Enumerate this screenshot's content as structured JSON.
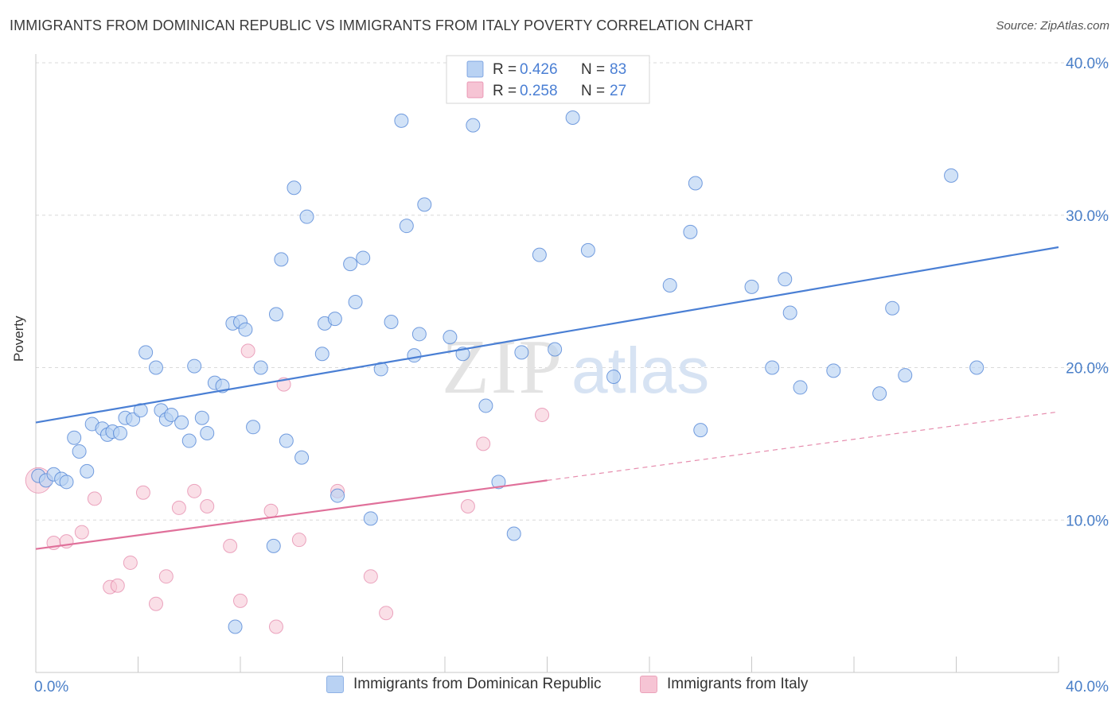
{
  "header": {
    "title": "IMMIGRANTS FROM DOMINICAN REPUBLIC VS IMMIGRANTS FROM ITALY POVERTY CORRELATION CHART",
    "source": "Source: ZipAtlas.com"
  },
  "watermark": {
    "zip": "ZIP",
    "atlas": "atlas"
  },
  "colors": {
    "blue": "#4a7fd4",
    "blue_fill": "#b9d2f3",
    "pink": "#e0709a",
    "pink_fill": "#f6c4d4",
    "grid": "#d9d9d9",
    "tick_label": "#4a7fc8"
  },
  "legend_top": [
    {
      "r_label": "R = ",
      "r_value": "0.426",
      "n_label": "N = ",
      "n_value": "83",
      "color": "#4a7fd4"
    },
    {
      "r_label": "R = ",
      "r_value": "0.258",
      "n_label": "N = ",
      "n_value": "27",
      "color": "#e0709a"
    }
  ],
  "chart_data": {
    "type": "scatter",
    "title": "IMMIGRANTS FROM DOMINICAN REPUBLIC VS IMMIGRANTS FROM ITALY POVERTY CORRELATION CHART",
    "xlabel": "",
    "ylabel": "Poverty",
    "xlim": [
      0,
      40
    ],
    "ylim": [
      0,
      40
    ],
    "x_tick_labels": [
      "0.0%",
      "40.0%"
    ],
    "y_ticks": [
      10,
      20,
      30,
      40
    ],
    "y_tick_labels": [
      "10.0%",
      "20.0%",
      "30.0%",
      "40.0%"
    ],
    "grid": true,
    "legend": "top-center",
    "series": [
      {
        "name": "Immigrants from Dominican Republic",
        "r": 0.426,
        "n": 83,
        "trend": {
          "x0": 0,
          "y0": 16.4,
          "x1": 40,
          "y1": 27.9
        },
        "points": [
          [
            0.1,
            12.9
          ],
          [
            0.4,
            12.6
          ],
          [
            0.7,
            13.0
          ],
          [
            1.0,
            12.7
          ],
          [
            1.2,
            12.5
          ],
          [
            1.5,
            15.4
          ],
          [
            1.7,
            14.5
          ],
          [
            2.0,
            13.2
          ],
          [
            2.2,
            16.3
          ],
          [
            2.6,
            16.0
          ],
          [
            2.8,
            15.6
          ],
          [
            3.0,
            15.8
          ],
          [
            3.3,
            15.7
          ],
          [
            3.5,
            16.7
          ],
          [
            3.8,
            16.6
          ],
          [
            4.1,
            17.2
          ],
          [
            4.3,
            21.0
          ],
          [
            4.7,
            20.0
          ],
          [
            4.9,
            17.2
          ],
          [
            5.1,
            16.6
          ],
          [
            5.3,
            16.9
          ],
          [
            5.7,
            16.4
          ],
          [
            6.0,
            15.2
          ],
          [
            6.2,
            20.1
          ],
          [
            6.5,
            16.7
          ],
          [
            6.7,
            15.7
          ],
          [
            7.0,
            19.0
          ],
          [
            7.3,
            18.8
          ],
          [
            7.7,
            22.9
          ],
          [
            8.0,
            23.0
          ],
          [
            8.2,
            22.5
          ],
          [
            8.5,
            16.1
          ],
          [
            8.8,
            20.0
          ],
          [
            9.3,
            8.3
          ],
          [
            9.4,
            23.5
          ],
          [
            9.6,
            27.1
          ],
          [
            9.8,
            15.2
          ],
          [
            10.1,
            31.8
          ],
          [
            10.4,
            14.1
          ],
          [
            10.6,
            29.9
          ],
          [
            11.2,
            20.9
          ],
          [
            11.3,
            22.9
          ],
          [
            11.7,
            23.2
          ],
          [
            11.8,
            11.6
          ],
          [
            12.3,
            26.8
          ],
          [
            12.5,
            24.3
          ],
          [
            12.8,
            27.2
          ],
          [
            13.1,
            10.1
          ],
          [
            13.5,
            19.9
          ],
          [
            13.9,
            23.0
          ],
          [
            14.3,
            36.2
          ],
          [
            14.5,
            29.3
          ],
          [
            14.8,
            20.8
          ],
          [
            15.0,
            22.2
          ],
          [
            15.2,
            30.7
          ],
          [
            16.2,
            22.0
          ],
          [
            16.7,
            20.9
          ],
          [
            17.1,
            35.9
          ],
          [
            17.6,
            17.5
          ],
          [
            18.1,
            12.5
          ],
          [
            18.7,
            9.1
          ],
          [
            19.0,
            21.0
          ],
          [
            19.7,
            27.4
          ],
          [
            20.3,
            21.2
          ],
          [
            21.0,
            36.4
          ],
          [
            21.6,
            27.7
          ],
          [
            22.6,
            19.4
          ],
          [
            24.8,
            25.4
          ],
          [
            25.6,
            28.9
          ],
          [
            25.8,
            32.1
          ],
          [
            26.0,
            15.9
          ],
          [
            28.0,
            25.3
          ],
          [
            28.8,
            20.0
          ],
          [
            29.3,
            25.8
          ],
          [
            29.5,
            23.6
          ],
          [
            29.9,
            18.7
          ],
          [
            31.2,
            19.8
          ],
          [
            33.0,
            18.3
          ],
          [
            33.5,
            23.9
          ],
          [
            34.0,
            19.5
          ],
          [
            35.8,
            32.6
          ],
          [
            36.8,
            20.0
          ],
          [
            7.8,
            3.0
          ]
        ]
      },
      {
        "name": "Immigrants from Italy",
        "r": 0.258,
        "n": 27,
        "trend": {
          "x0": 0,
          "y0": 8.1,
          "x1": 20,
          "y1": 12.6,
          "dash_to_x": 40,
          "dash_to_y": 17.1
        },
        "points": [
          [
            0.1,
            12.6
          ],
          [
            0.7,
            8.5
          ],
          [
            1.2,
            8.6
          ],
          [
            1.8,
            9.2
          ],
          [
            2.3,
            11.4
          ],
          [
            2.9,
            5.6
          ],
          [
            3.2,
            5.7
          ],
          [
            3.7,
            7.2
          ],
          [
            4.2,
            11.8
          ],
          [
            4.7,
            4.5
          ],
          [
            5.1,
            6.3
          ],
          [
            5.6,
            10.8
          ],
          [
            6.2,
            11.9
          ],
          [
            6.7,
            10.9
          ],
          [
            7.6,
            8.3
          ],
          [
            8.0,
            4.7
          ],
          [
            8.3,
            21.1
          ],
          [
            9.2,
            10.6
          ],
          [
            9.4,
            3.0
          ],
          [
            9.7,
            18.9
          ],
          [
            10.3,
            8.7
          ],
          [
            11.8,
            11.9
          ],
          [
            13.1,
            6.3
          ],
          [
            13.7,
            3.9
          ],
          [
            16.9,
            10.9
          ],
          [
            17.5,
            15.0
          ],
          [
            19.8,
            16.9
          ]
        ]
      }
    ]
  },
  "legend_bottom": [
    {
      "label": "Immigrants from Dominican Republic"
    },
    {
      "label": "Immigrants from Italy"
    }
  ]
}
